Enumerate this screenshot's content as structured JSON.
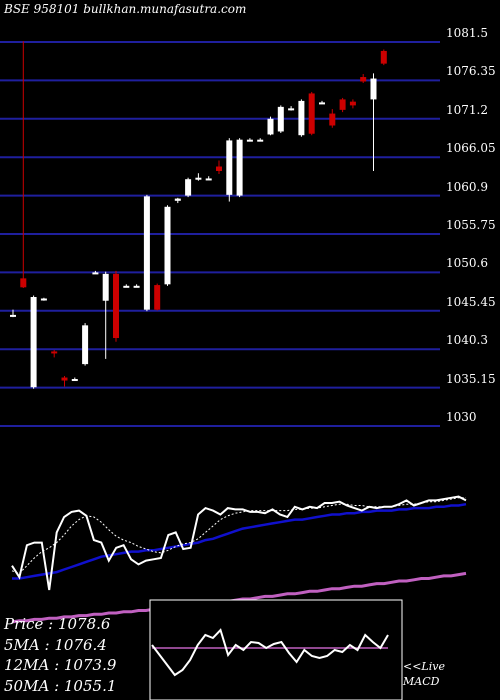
{
  "watermark": "BSE 958101 bullkhan.munafasutra.com",
  "chart_data": {
    "type": "candlestick",
    "ylim": [
      1030,
      1081.5
    ],
    "y_ticks": [
      "1081.5",
      "1076.35",
      "1071.2",
      "1066.05",
      "1060.9",
      "1055.75",
      "1050.6",
      "1045.45",
      "1040.3",
      "1035.15",
      "1030"
    ],
    "colors": {
      "background": "#000000",
      "grid": "#1f1f9e",
      "up": "#ffffff",
      "down": "#cc0000",
      "ma_short": "#ffffff",
      "ma_mid": "#1010cc",
      "ma_long": "#c060c0",
      "macd_line": "#ffffff",
      "macd_signal": "#c060c0"
    },
    "candles": [
      {
        "o": 1044.8,
        "h": 1045.6,
        "l": 1044.6,
        "c": 1044.9
      },
      {
        "o": 1049.8,
        "h": 1081.6,
        "l": 1048.5,
        "c": 1048.6
      },
      {
        "o": 1035.2,
        "h": 1047.5,
        "l": 1035.0,
        "c": 1047.3
      },
      {
        "o": 1047.0,
        "h": 1047.2,
        "l": 1046.8,
        "c": 1047.1
      },
      {
        "o": 1040.0,
        "h": 1040.2,
        "l": 1039.2,
        "c": 1039.8
      },
      {
        "o": 1036.5,
        "h": 1036.7,
        "l": 1035.3,
        "c": 1036.1
      },
      {
        "o": 1036.3,
        "h": 1036.5,
        "l": 1036.1,
        "c": 1036.3
      },
      {
        "o": 1038.3,
        "h": 1043.8,
        "l": 1038.1,
        "c": 1043.5
      },
      {
        "o": 1050.6,
        "h": 1050.8,
        "l": 1050.4,
        "c": 1050.6
      },
      {
        "o": 1046.8,
        "h": 1050.7,
        "l": 1039.0,
        "c": 1050.4
      },
      {
        "o": 1050.4,
        "h": 1050.8,
        "l": 1041.3,
        "c": 1041.8
      },
      {
        "o": 1048.8,
        "h": 1049.0,
        "l": 1048.6,
        "c": 1048.8
      },
      {
        "o": 1048.8,
        "h": 1049.0,
        "l": 1048.6,
        "c": 1048.8
      },
      {
        "o": 1045.6,
        "h": 1061.0,
        "l": 1045.4,
        "c": 1060.8
      },
      {
        "o": 1048.9,
        "h": 1049.1,
        "l": 1045.5,
        "c": 1045.6
      },
      {
        "o": 1049.0,
        "h": 1059.6,
        "l": 1048.8,
        "c": 1059.4
      },
      {
        "o": 1060.2,
        "h": 1060.6,
        "l": 1059.9,
        "c": 1060.5
      },
      {
        "o": 1060.9,
        "h": 1063.3,
        "l": 1060.7,
        "c": 1063.1
      },
      {
        "o": 1063.1,
        "h": 1063.9,
        "l": 1062.9,
        "c": 1063.3
      },
      {
        "o": 1063.2,
        "h": 1063.5,
        "l": 1063.0,
        "c": 1063.2
      },
      {
        "o": 1064.8,
        "h": 1065.6,
        "l": 1063.8,
        "c": 1064.2
      },
      {
        "o": 1061.0,
        "h": 1068.6,
        "l": 1060.1,
        "c": 1068.3
      },
      {
        "o": 1060.9,
        "h": 1068.6,
        "l": 1060.7,
        "c": 1068.4
      },
      {
        "o": 1068.4,
        "h": 1068.6,
        "l": 1068.2,
        "c": 1068.4
      },
      {
        "o": 1068.4,
        "h": 1068.6,
        "l": 1068.2,
        "c": 1068.4
      },
      {
        "o": 1069.1,
        "h": 1071.5,
        "l": 1069.0,
        "c": 1071.2
      },
      {
        "o": 1069.5,
        "h": 1073.0,
        "l": 1069.3,
        "c": 1072.8
      },
      {
        "o": 1072.6,
        "h": 1072.9,
        "l": 1072.3,
        "c": 1072.6
      },
      {
        "o": 1069.0,
        "h": 1073.8,
        "l": 1068.8,
        "c": 1073.6
      },
      {
        "o": 1074.6,
        "h": 1074.8,
        "l": 1069.0,
        "c": 1069.2
      },
      {
        "o": 1073.4,
        "h": 1073.6,
        "l": 1073.2,
        "c": 1073.4
      },
      {
        "o": 1071.9,
        "h": 1072.5,
        "l": 1070.0,
        "c": 1070.3
      },
      {
        "o": 1073.8,
        "h": 1074.0,
        "l": 1072.1,
        "c": 1072.4
      },
      {
        "o": 1073.5,
        "h": 1073.8,
        "l": 1072.6,
        "c": 1073.0
      },
      {
        "o": 1076.8,
        "h": 1077.2,
        "l": 1076.0,
        "c": 1076.2
      },
      {
        "o": 1073.8,
        "h": 1077.3,
        "l": 1064.2,
        "c": 1076.6
      },
      {
        "o": 1080.3,
        "h": 1080.5,
        "l": 1078.4,
        "c": 1078.6
      }
    ],
    "ma_panel": {
      "price": [
        56,
        65,
        40,
        38,
        38,
        75,
        30,
        18,
        14,
        13,
        17,
        36,
        38,
        52,
        42,
        40,
        51,
        55,
        52,
        51,
        50,
        32,
        30,
        43,
        42,
        16,
        11,
        13,
        16,
        11,
        12,
        12,
        14,
        14,
        15,
        12,
        16,
        18,
        10,
        12,
        10,
        11,
        7,
        7,
        6,
        9,
        11,
        13,
        10,
        11,
        10,
        10,
        8,
        5,
        9,
        7,
        5,
        5,
        4,
        3,
        2,
        5
      ],
      "ma5": [
        60,
        62,
        56,
        50,
        45,
        42,
        38,
        32,
        25,
        20,
        17,
        18,
        22,
        28,
        33,
        36,
        38,
        41,
        43,
        45,
        46,
        44,
        41,
        39,
        38,
        35,
        30,
        25,
        20,
        17,
        15,
        14,
        13,
        13,
        13,
        13,
        13,
        13,
        12,
        12,
        11,
        11,
        10,
        9,
        8,
        8,
        9,
        9,
        10,
        10,
        10,
        10,
        9,
        8,
        8,
        7,
        6,
        6,
        5,
        4,
        3,
        3
      ],
      "ma12": [
        66,
        66,
        65,
        64,
        63,
        62,
        61,
        59,
        57,
        55,
        53,
        51,
        49,
        48,
        47,
        46,
        45,
        45,
        44,
        44,
        43,
        42,
        41,
        40,
        39,
        38,
        36,
        35,
        33,
        31,
        29,
        27,
        26,
        25,
        24,
        23,
        22,
        21,
        20,
        20,
        19,
        18,
        17,
        16,
        16,
        15,
        15,
        14,
        14,
        13,
        13,
        13,
        12,
        12,
        11,
        11,
        11,
        10,
        10,
        9,
        9,
        8
      ],
      "ma50": [
        100,
        99,
        99,
        98,
        98,
        97,
        97,
        96,
        96,
        95,
        95,
        94,
        94,
        93,
        93,
        92,
        92,
        91,
        91,
        90,
        90,
        89,
        88,
        88,
        87,
        86,
        86,
        85,
        84,
        84,
        83,
        82,
        82,
        81,
        80,
        80,
        79,
        78,
        78,
        77,
        76,
        76,
        75,
        74,
        74,
        73,
        72,
        72,
        71,
        70,
        70,
        69,
        68,
        68,
        67,
        66,
        66,
        65,
        64,
        64,
        63,
        62
      ],
      "labels": [
        {
          "name": "Price",
          "value": "1078.6"
        },
        {
          "name": "5MA",
          "value": "1076.4"
        },
        {
          "name": "12MA",
          "value": "1073.9"
        },
        {
          "name": "50MA",
          "value": "1055.1"
        }
      ]
    },
    "macd_panel": {
      "label_line1": "<<Live",
      "label_line2": "MACD",
      "macd": [
        55,
        45,
        35,
        25,
        30,
        40,
        55,
        65,
        62,
        70,
        45,
        55,
        50,
        58,
        57,
        52,
        56,
        58,
        47,
        38,
        50,
        44,
        42,
        44,
        50,
        48,
        55,
        50,
        65,
        58,
        52,
        65
      ],
      "signal": [
        52,
        52,
        52,
        52,
        52,
        52,
        52,
        52,
        52,
        52,
        52,
        52,
        52,
        52,
        52,
        52,
        52,
        52,
        52,
        52,
        52,
        52,
        52,
        52,
        52,
        52,
        52,
        52,
        52,
        52,
        52,
        52
      ]
    }
  }
}
